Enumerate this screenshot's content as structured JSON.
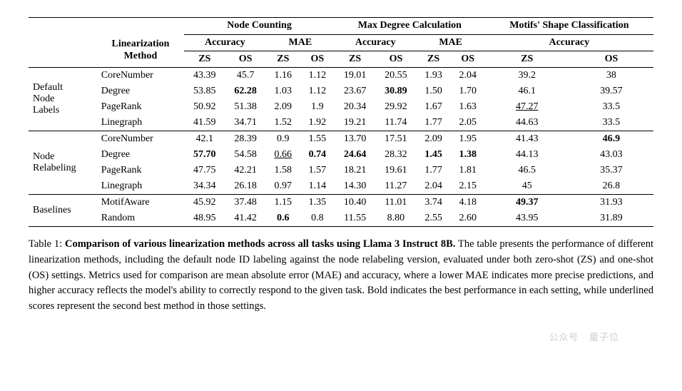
{
  "table": {
    "col_group_headers": [
      "Node Counting",
      "Max Degree Calculation",
      "Motifs' Shape Classification"
    ],
    "metric_headers": [
      "Accuracy",
      "MAE",
      "Accuracy",
      "MAE",
      "Accuracy"
    ],
    "sub_headers_left": {
      "line1": "Linearization",
      "line2": "Method"
    },
    "zs_os": [
      "ZS",
      "OS"
    ],
    "sections": [
      {
        "label": "Default Node Labels",
        "rows": [
          {
            "method": "CoreNumber",
            "cells": [
              {
                "v": "43.39"
              },
              {
                "v": "45.7"
              },
              {
                "v": "1.16"
              },
              {
                "v": "1.12"
              },
              {
                "v": "19.01"
              },
              {
                "v": "20.55"
              },
              {
                "v": "1.93"
              },
              {
                "v": "2.04"
              },
              {
                "v": "39.2"
              },
              {
                "v": "38"
              }
            ]
          },
          {
            "method": "Degree",
            "cells": [
              {
                "v": "53.85"
              },
              {
                "v": "62.28",
                "b": true
              },
              {
                "v": "1.03"
              },
              {
                "v": "1.12"
              },
              {
                "v": "23.67"
              },
              {
                "v": "30.89",
                "b": true
              },
              {
                "v": "1.50"
              },
              {
                "v": "1.70"
              },
              {
                "v": "46.1"
              },
              {
                "v": "39.57"
              }
            ]
          },
          {
            "method": "PageRank",
            "cells": [
              {
                "v": "50.92"
              },
              {
                "v": "51.38"
              },
              {
                "v": "2.09"
              },
              {
                "v": "1.9"
              },
              {
                "v": "20.34"
              },
              {
                "v": "29.92"
              },
              {
                "v": "1.67"
              },
              {
                "v": "1.63"
              },
              {
                "v": "47.27",
                "u": true
              },
              {
                "v": "33.5"
              }
            ]
          },
          {
            "method": "Linegraph",
            "cells": [
              {
                "v": "41.59"
              },
              {
                "v": "34.71"
              },
              {
                "v": "1.52"
              },
              {
                "v": "1.92"
              },
              {
                "v": "19.21"
              },
              {
                "v": "11.74"
              },
              {
                "v": "1.77"
              },
              {
                "v": "2.05"
              },
              {
                "v": "44.63"
              },
              {
                "v": "33.5"
              }
            ]
          }
        ]
      },
      {
        "label": "Node Relabeling",
        "rows": [
          {
            "method": "CoreNumber",
            "cells": [
              {
                "v": "42.1"
              },
              {
                "v": "28.39"
              },
              {
                "v": "0.9"
              },
              {
                "v": "1.55"
              },
              {
                "v": "13.70"
              },
              {
                "v": "17.51"
              },
              {
                "v": "2.09"
              },
              {
                "v": "1.95"
              },
              {
                "v": "41.43"
              },
              {
                "v": "46.9",
                "b": true
              }
            ]
          },
          {
            "method": "Degree",
            "cells": [
              {
                "v": "57.70",
                "b": true
              },
              {
                "v": "54.58"
              },
              {
                "v": "0.66",
                "u": true
              },
              {
                "v": "0.74",
                "b": true
              },
              {
                "v": "24.64",
                "b": true
              },
              {
                "v": "28.32"
              },
              {
                "v": "1.45",
                "b": true
              },
              {
                "v": "1.38",
                "b": true
              },
              {
                "v": "44.13"
              },
              {
                "v": "43.03"
              }
            ]
          },
          {
            "method": "PageRank",
            "cells": [
              {
                "v": "47.75"
              },
              {
                "v": "42.21"
              },
              {
                "v": "1.58"
              },
              {
                "v": "1.57"
              },
              {
                "v": "18.21"
              },
              {
                "v": "19.61"
              },
              {
                "v": "1.77"
              },
              {
                "v": "1.81"
              },
              {
                "v": "46.5"
              },
              {
                "v": "35.37"
              }
            ]
          },
          {
            "method": "Linegraph",
            "cells": [
              {
                "v": "34.34"
              },
              {
                "v": "26.18"
              },
              {
                "v": "0.97"
              },
              {
                "v": "1.14"
              },
              {
                "v": "14.30"
              },
              {
                "v": "11.27"
              },
              {
                "v": "2.04"
              },
              {
                "v": "2.15"
              },
              {
                "v": "45"
              },
              {
                "v": "26.8"
              }
            ]
          }
        ]
      },
      {
        "label": "Baselines",
        "rows": [
          {
            "method": "MotifAware",
            "cells": [
              {
                "v": "45.92"
              },
              {
                "v": "37.48"
              },
              {
                "v": "1.15"
              },
              {
                "v": "1.35"
              },
              {
                "v": "10.40"
              },
              {
                "v": "11.01"
              },
              {
                "v": "3.74"
              },
              {
                "v": "4.18"
              },
              {
                "v": "49.37",
                "b": true
              },
              {
                "v": "31.93"
              }
            ]
          },
          {
            "method": "Random",
            "cells": [
              {
                "v": "48.95"
              },
              {
                "v": "41.42"
              },
              {
                "v": "0.6",
                "b": true
              },
              {
                "v": "0.8"
              },
              {
                "v": "11.55"
              },
              {
                "v": "8.80"
              },
              {
                "v": "2.55"
              },
              {
                "v": "2.60"
              },
              {
                "v": "43.95"
              },
              {
                "v": "31.89"
              }
            ]
          }
        ]
      }
    ]
  },
  "caption": {
    "label": "Table 1:",
    "title": "Comparison of various linearization methods across all tasks using Llama 3 Instruct 8B.",
    "body": " The table presents the performance of different linearization methods, including the default node ID labeling against the node relabeling version, evaluated under both zero-shot (ZS) and one-shot (OS) settings. Metrics used for comparison are mean absolute error (MAE) and accuracy, where a lower MAE indicates more precise predictions, and higher accuracy reflects the model's ability to correctly respond to the given task. Bold indicates the best performance in each setting, while underlined scores represent the second best method in those settings."
  },
  "watermark": "公众号 · 量子位",
  "style": {
    "font_family": "Times New Roman",
    "font_size_table": 14,
    "font_size_caption": 14.5,
    "border_color": "#000000",
    "background": "#ffffff",
    "text_color": "#000000",
    "watermark_color": "#d0d0d0"
  }
}
